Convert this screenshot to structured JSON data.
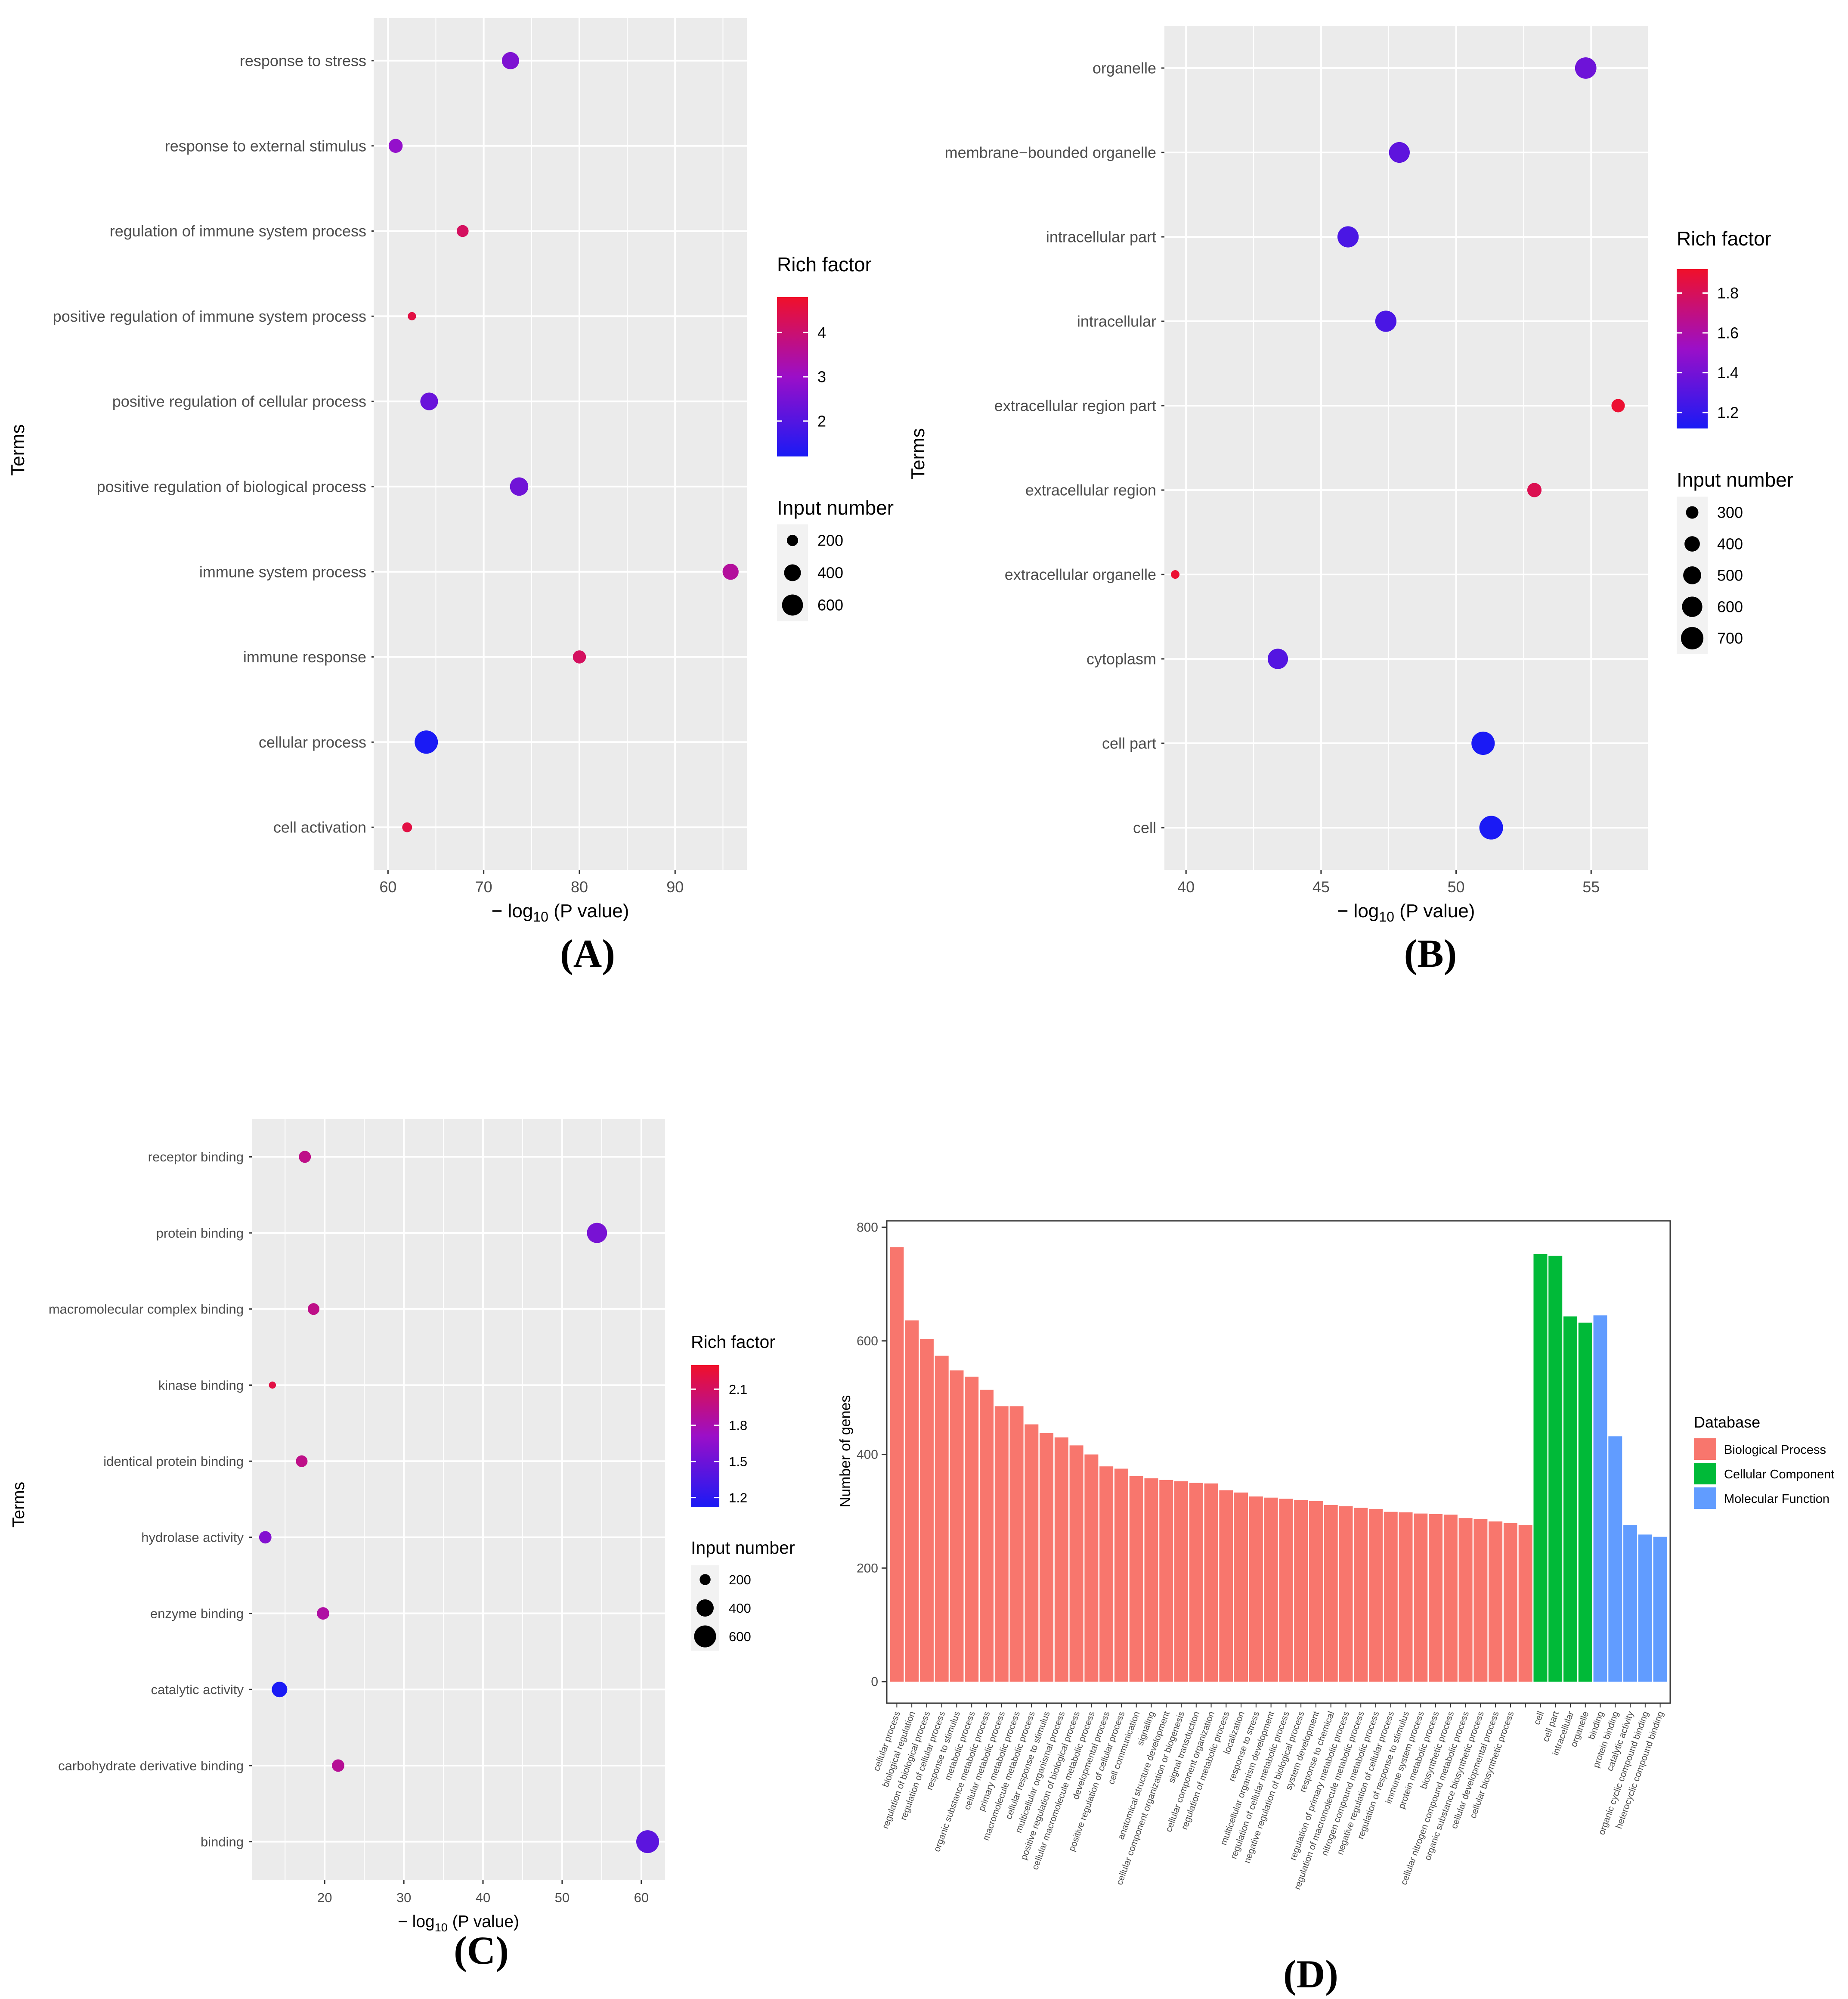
{
  "chart_data": [
    {
      "panel": "A",
      "type": "scatter",
      "caption": "(A)",
      "xlabel_prefix": "− log",
      "xlabel_sub": "10",
      "xlabel_suffix": " (P value)",
      "ylabel": "Terms",
      "xlim": [
        58.5,
        97.5
      ],
      "xticks": [
        60,
        70,
        80,
        90
      ],
      "points": [
        {
          "term": "response to stress",
          "x": 72.8,
          "size": 420,
          "rich": 2.6
        },
        {
          "term": "response to external stimulus",
          "x": 60.8,
          "size": 290,
          "rich": 2.9
        },
        {
          "term": "regulation of immune system process",
          "x": 67.8,
          "size": 220,
          "rich": 4.2
        },
        {
          "term": "positive regulation of immune system process",
          "x": 62.5,
          "size": 120,
          "rich": 4.5
        },
        {
          "term": "positive regulation of cellular process",
          "x": 64.3,
          "size": 440,
          "rich": 2.3
        },
        {
          "term": "positive regulation of biological process",
          "x": 73.7,
          "size": 470,
          "rich": 2.4
        },
        {
          "term": "immune system process",
          "x": 95.8,
          "size": 370,
          "rich": 3.5
        },
        {
          "term": "immune response",
          "x": 80.0,
          "size": 260,
          "rich": 4.2
        },
        {
          "term": "cellular process",
          "x": 64.0,
          "size": 720,
          "rich": 1.2
        },
        {
          "term": "cell activation",
          "x": 62.0,
          "size": 160,
          "rich": 4.5
        }
      ],
      "legend": {
        "color_title": "Rich factor",
        "color_min": 1.2,
        "color_max": 4.8,
        "color_ticks": [
          4,
          3,
          2
        ],
        "size_title": "Input number",
        "size_ticks": [
          200,
          400,
          600
        ]
      }
    },
    {
      "panel": "B",
      "type": "scatter",
      "caption": "(B)",
      "xlabel_prefix": "− log",
      "xlabel_sub": "10",
      "xlabel_suffix": " (P value)",
      "ylabel": "Terms",
      "xlim": [
        39.2,
        57.1
      ],
      "xticks": [
        40,
        45,
        50,
        55
      ],
      "points": [
        {
          "term": "organelle",
          "x": 54.8,
          "size": 650,
          "rich": 1.38
        },
        {
          "term": "membrane−bounded organelle",
          "x": 47.9,
          "size": 620,
          "rich": 1.33
        },
        {
          "term": "intracellular part",
          "x": 46.0,
          "size": 640,
          "rich": 1.27
        },
        {
          "term": "intracellular",
          "x": 47.4,
          "size": 640,
          "rich": 1.27
        },
        {
          "term": "extracellular region part",
          "x": 56.0,
          "size": 330,
          "rich": 1.9
        },
        {
          "term": "extracellular region",
          "x": 52.9,
          "size": 360,
          "rich": 1.82
        },
        {
          "term": "extracellular organelle",
          "x": 39.6,
          "size": 190,
          "rich": 1.9
        },
        {
          "term": "cytoplasm",
          "x": 43.4,
          "size": 600,
          "rich": 1.3
        },
        {
          "term": "cell part",
          "x": 51.0,
          "size": 740,
          "rich": 1.12
        },
        {
          "term": "cell",
          "x": 51.3,
          "size": 760,
          "rich": 1.12
        }
      ],
      "legend": {
        "color_title": "Rich factor",
        "color_min": 1.12,
        "color_max": 1.92,
        "color_ticks": [
          1.8,
          1.6,
          1.4,
          1.2
        ],
        "size_title": "Input number",
        "size_ticks": [
          300,
          400,
          500,
          600,
          700
        ]
      }
    },
    {
      "panel": "C",
      "type": "scatter",
      "caption": "(C)",
      "xlabel_prefix": "− log",
      "xlabel_sub": "10",
      "xlabel_suffix": " (P value)",
      "ylabel": "Terms",
      "xlim": [
        10.8,
        63.0
      ],
      "xticks": [
        20,
        30,
        40,
        50,
        60
      ],
      "points": [
        {
          "term": "receptor binding",
          "x": 17.5,
          "size": 230,
          "rich": 1.95
        },
        {
          "term": "protein binding",
          "x": 54.4,
          "size": 520,
          "rich": 1.55
        },
        {
          "term": "macromolecular complex binding",
          "x": 18.6,
          "size": 220,
          "rich": 1.95
        },
        {
          "term": "kinase binding",
          "x": 13.4,
          "size": 110,
          "rich": 2.2
        },
        {
          "term": "identical protein binding",
          "x": 17.1,
          "size": 220,
          "rich": 1.95
        },
        {
          "term": "hydrolase activity",
          "x": 12.5,
          "size": 240,
          "rich": 1.6
        },
        {
          "term": "enzyme binding",
          "x": 19.8,
          "size": 240,
          "rich": 1.85
        },
        {
          "term": "catalytic activity",
          "x": 14.3,
          "size": 340,
          "rich": 1.12
        },
        {
          "term": "carbohydrate derivative binding",
          "x": 21.7,
          "size": 240,
          "rich": 1.9
        },
        {
          "term": "binding",
          "x": 60.8,
          "size": 640,
          "rich": 1.42
        }
      ],
      "legend": {
        "color_title": "Rich factor",
        "color_min": 1.12,
        "color_max": 2.3,
        "color_ticks": [
          2.1,
          1.8,
          1.5,
          1.2
        ],
        "size_title": "Input number",
        "size_ticks": [
          200,
          400,
          600
        ]
      }
    },
    {
      "panel": "D",
      "type": "bar",
      "caption": "(D)",
      "ylabel": "Number of genes",
      "ylim": [
        0,
        800
      ],
      "yticks": [
        0,
        200,
        400,
        600,
        800
      ],
      "legend_title": "Database",
      "groups": [
        {
          "name": "Biological Process",
          "color": "#F8766D"
        },
        {
          "name": "Cellular Component",
          "color": "#00BA38"
        },
        {
          "name": "Molecular Function",
          "color": "#619CFF"
        }
      ],
      "bars": [
        {
          "label": "cellular process",
          "value": 765,
          "group": 0
        },
        {
          "label": "biological regulation",
          "value": 636,
          "group": 0
        },
        {
          "label": "regulation of biological process",
          "value": 603,
          "group": 0
        },
        {
          "label": "regulation of cellular process",
          "value": 574,
          "group": 0
        },
        {
          "label": "response to stimulus",
          "value": 548,
          "group": 0
        },
        {
          "label": "metabolic process",
          "value": 537,
          "group": 0
        },
        {
          "label": "organic substance metabolic process",
          "value": 514,
          "group": 0
        },
        {
          "label": "cellular metabolic process",
          "value": 485,
          "group": 0
        },
        {
          "label": "primary metabolic process",
          "value": 485,
          "group": 0
        },
        {
          "label": "macromolecule metabolic process",
          "value": 453,
          "group": 0
        },
        {
          "label": "cellular response to stimulus",
          "value": 438,
          "group": 0
        },
        {
          "label": "multicellular organismal process",
          "value": 430,
          "group": 0
        },
        {
          "label": "positive regulation of biological process",
          "value": 416,
          "group": 0
        },
        {
          "label": "cellular macromolecule metabolic process",
          "value": 400,
          "group": 0
        },
        {
          "label": "developmental process",
          "value": 379,
          "group": 0
        },
        {
          "label": "positive regulation of cellular process",
          "value": 375,
          "group": 0
        },
        {
          "label": "cell communication",
          "value": 362,
          "group": 0
        },
        {
          "label": "signaling",
          "value": 358,
          "group": 0
        },
        {
          "label": "anatomical structure development",
          "value": 355,
          "group": 0
        },
        {
          "label": "cellular component organization or biogenesis",
          "value": 353,
          "group": 0
        },
        {
          "label": "signal transduction",
          "value": 350,
          "group": 0
        },
        {
          "label": "cellular component organization",
          "value": 349,
          "group": 0
        },
        {
          "label": "regulation of metabolic process",
          "value": 337,
          "group": 0
        },
        {
          "label": "localization",
          "value": 333,
          "group": 0
        },
        {
          "label": "response to stress",
          "value": 326,
          "group": 0
        },
        {
          "label": "multicellular organism development",
          "value": 324,
          "group": 0
        },
        {
          "label": "regulation of cellular metabolic process",
          "value": 322,
          "group": 0
        },
        {
          "label": "negative regulation of biological process",
          "value": 320,
          "group": 0
        },
        {
          "label": "system development",
          "value": 318,
          "group": 0
        },
        {
          "label": "response to chemical",
          "value": 311,
          "group": 0
        },
        {
          "label": "regulation of primary metabolic process",
          "value": 309,
          "group": 0
        },
        {
          "label": "regulation of macromolecule metabolic process",
          "value": 306,
          "group": 0
        },
        {
          "label": "nitrogen compound metabolic process",
          "value": 304,
          "group": 0
        },
        {
          "label": "negative regulation of cellular process",
          "value": 299,
          "group": 0
        },
        {
          "label": "regulation of response to stimulus",
          "value": 298,
          "group": 0
        },
        {
          "label": "immune system process",
          "value": 296,
          "group": 0
        },
        {
          "label": "protein metabolic process",
          "value": 295,
          "group": 0
        },
        {
          "label": "biosynthetic process",
          "value": 294,
          "group": 0
        },
        {
          "label": "cellular nitrogen compound metabolic process",
          "value": 288,
          "group": 0
        },
        {
          "label": "organic substance biosynthetic process",
          "value": 286,
          "group": 0
        },
        {
          "label": "cellular developmental process",
          "value": 282,
          "group": 0
        },
        {
          "label": "cellular biosynthetic process",
          "value": 279,
          "group": 0
        },
        {
          "label": "",
          "value": 276,
          "group": 0
        },
        {
          "label": "cell",
          "value": 753,
          "group": 1
        },
        {
          "label": "cell part",
          "value": 750,
          "group": 1
        },
        {
          "label": "intracellular",
          "value": 643,
          "group": 1
        },
        {
          "label": "organelle",
          "value": 632,
          "group": 1
        },
        {
          "label": "binding",
          "value": 645,
          "group": 2
        },
        {
          "label": "protein binding",
          "value": 432,
          "group": 2
        },
        {
          "label": "catalytic activity",
          "value": 276,
          "group": 2
        },
        {
          "label": "organic cyclic compound binding",
          "value": 259,
          "group": 2
        },
        {
          "label": "heterocyclic compound binding",
          "value": 255,
          "group": 2
        }
      ]
    }
  ]
}
